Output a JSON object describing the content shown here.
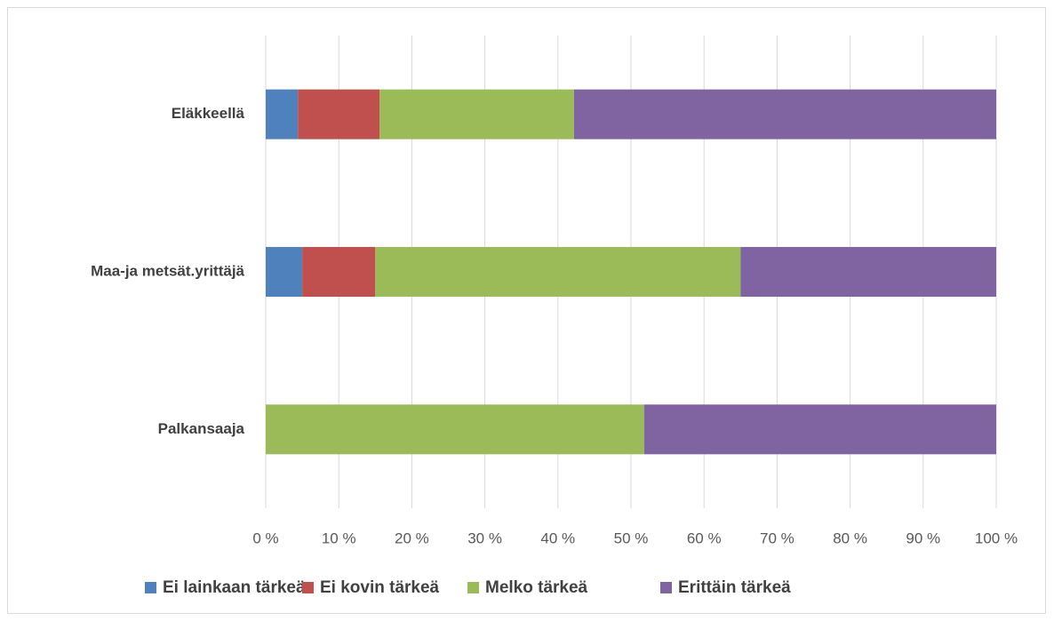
{
  "chart_data": {
    "type": "stacked_barh",
    "categories": [
      "Eläkkeellä",
      "Maa-ja metsät.yrittäjä",
      "Palkansaaja"
    ],
    "series": [
      {
        "name": "Ei lainkaan tärkeä",
        "color": "#4f81bd",
        "values": [
          4.4,
          5.0,
          0
        ]
      },
      {
        "name": "Ei kovin tärkeä",
        "color": "#c0504d",
        "values": [
          11.2,
          10.0,
          0
        ]
      },
      {
        "name": "Melko tärkeä",
        "color": "#9bbb59",
        "values": [
          26.6,
          50.0,
          51.8
        ]
      },
      {
        "name": "Erittäin tärkeä",
        "color": "#8064a2",
        "values": [
          57.8,
          35.0,
          48.2
        ]
      }
    ],
    "xlim": [
      0,
      100
    ],
    "xticks": [
      {
        "value": 0,
        "label": "0 %"
      },
      {
        "value": 10,
        "label": "10 %"
      },
      {
        "value": 20,
        "label": "20 %"
      },
      {
        "value": 30,
        "label": "30 %"
      },
      {
        "value": 40,
        "label": "40 %"
      },
      {
        "value": 50,
        "label": "50 %"
      },
      {
        "value": 60,
        "label": "60 %"
      },
      {
        "value": 70,
        "label": "70 %"
      },
      {
        "value": 80,
        "label": "80 %"
      },
      {
        "value": 90,
        "label": "90 %"
      },
      {
        "value": 100,
        "label": "100 %"
      }
    ],
    "grid": true,
    "legend": "bottom"
  }
}
